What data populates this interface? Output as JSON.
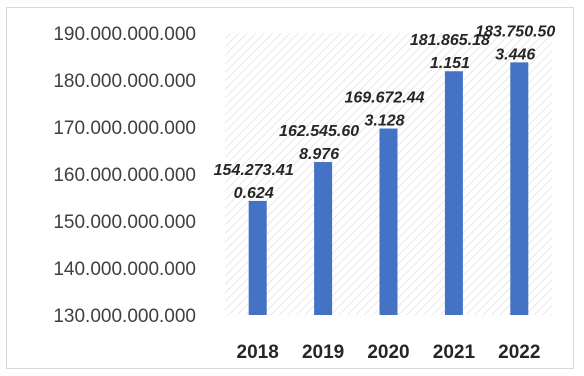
{
  "chart_data": {
    "type": "bar",
    "title": "",
    "xlabel": "",
    "ylabel": "",
    "categories": [
      "2018",
      "2019",
      "2020",
      "2021",
      "2022"
    ],
    "values": [
      154273410624,
      162545608976,
      169672443128,
      181865181151,
      183750503446
    ],
    "data_labels": [
      [
        "154.273.41",
        "0.624"
      ],
      [
        "162.545.60",
        "8.976"
      ],
      [
        "169.672.44",
        "3.128"
      ],
      [
        "181.865.18",
        "1.151"
      ],
      [
        "183.750.50",
        "3.446"
      ]
    ],
    "ylim": [
      130000000000,
      190000000000
    ],
    "y_ticks": [
      130000000000,
      140000000000,
      150000000000,
      160000000000,
      170000000000,
      180000000000,
      190000000000
    ],
    "y_tick_labels": [
      "130.000.000.000",
      "140.000.000.000",
      "150.000.000.000",
      "160.000.000.000",
      "170.000.000.000",
      "180.000.000.000",
      "190.000.000.000"
    ],
    "grid": false,
    "legend": "none",
    "plot_background": "diagonal-hatch",
    "colors": {
      "bar": "#4472c4",
      "hatch": "#d9d9d9",
      "text": "#262626"
    }
  }
}
